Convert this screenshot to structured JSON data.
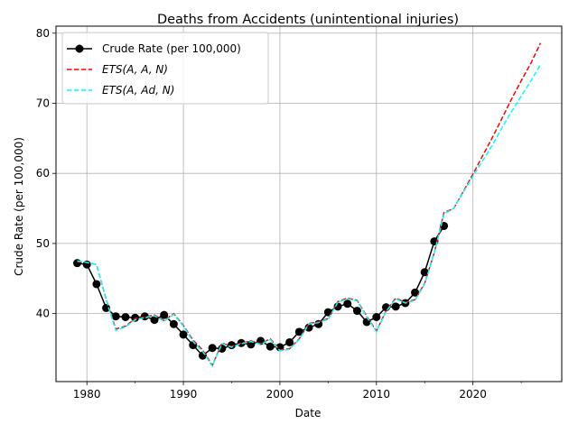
{
  "chart_data": {
    "type": "line",
    "title": "Deaths from Accidents (unintentional injuries)",
    "xlabel": "Date",
    "ylabel": "Crude Rate (per 100,000)",
    "xlim": [
      1976.8,
      2029.2
    ],
    "ylim": [
      30.3,
      81.0
    ],
    "x_ticks": [
      1980,
      1990,
      2000,
      2010,
      2020
    ],
    "x_minor_ticks": [
      1985,
      1995,
      2005,
      2015,
      2025
    ],
    "y_ticks": [
      40,
      50,
      60,
      70,
      80
    ],
    "grid": true,
    "legend_position": "top-left",
    "colors": {
      "observed": "#000000",
      "ets_aan": "#ff0000",
      "ets_aadn": "#00ffff",
      "grid": "#b0b0b0"
    },
    "series": [
      {
        "name": "Crude Rate (per 100,000)",
        "legend_label": "Crude Rate (per 100,000)",
        "style": "solid-marker",
        "x": [
          1979,
          1980,
          1981,
          1982,
          1983,
          1984,
          1985,
          1986,
          1987,
          1988,
          1989,
          1990,
          1991,
          1992,
          1993,
          1994,
          1995,
          1996,
          1997,
          1998,
          1999,
          2000,
          2001,
          2002,
          2003,
          2004,
          2005,
          2006,
          2007,
          2008,
          2009,
          2010,
          2011,
          2012,
          2013,
          2014,
          2015,
          2016,
          2017
        ],
        "values": [
          47.2,
          47.0,
          44.2,
          40.8,
          39.6,
          39.5,
          39.4,
          39.6,
          39.1,
          39.8,
          38.5,
          37.0,
          35.5,
          34.0,
          35.1,
          35.0,
          35.5,
          35.8,
          35.6,
          36.1,
          35.3,
          35.2,
          35.9,
          37.4,
          38.0,
          38.5,
          40.2,
          41.0,
          41.4,
          40.4,
          38.8,
          39.5,
          40.9,
          41.0,
          41.5,
          43.0,
          45.9,
          50.3,
          52.5
        ]
      },
      {
        "name": "ETS(A,A,N)",
        "legend_label": "ETS(A, A, N)",
        "style": "dashed",
        "x": [
          1979,
          1980,
          1981,
          1982,
          1983,
          1984,
          1985,
          1986,
          1987,
          1988,
          1989,
          1990,
          1991,
          1992,
          1993,
          1994,
          1995,
          1996,
          1997,
          1998,
          1999,
          2000,
          2001,
          2002,
          2003,
          2004,
          2005,
          2006,
          2007,
          2008,
          2009,
          2010,
          2011,
          2012,
          2013,
          2014,
          2015,
          2016,
          2017,
          2018,
          2019,
          2020,
          2021,
          2022,
          2023,
          2024,
          2025,
          2026,
          2027
        ],
        "values": [
          47.4,
          47.3,
          47.0,
          42.0,
          37.8,
          38.2,
          39.3,
          39.5,
          39.8,
          39.0,
          40.0,
          38.3,
          36.2,
          34.8,
          32.6,
          35.8,
          35.3,
          35.8,
          36.1,
          35.7,
          36.4,
          34.8,
          35.0,
          36.4,
          38.6,
          38.8,
          39.3,
          41.7,
          42.2,
          41.9,
          39.6,
          37.5,
          40.4,
          42.2,
          41.6,
          42.0,
          44.3,
          48.7,
          54.4,
          55.0,
          57.4,
          59.9,
          62.5,
          65.1,
          67.8,
          70.6,
          73.2,
          75.7,
          78.6
        ]
      },
      {
        "name": "ETS(A,Ad,N)",
        "legend_label": "ETS(A, Ad, N)",
        "style": "dashed",
        "x": [
          1979,
          1980,
          1981,
          1982,
          1983,
          1984,
          1985,
          1986,
          1987,
          1988,
          1989,
          1990,
          1991,
          1992,
          1993,
          1994,
          1995,
          1996,
          1997,
          1998,
          1999,
          2000,
          2001,
          2002,
          2003,
          2004,
          2005,
          2006,
          2007,
          2008,
          2009,
          2010,
          2011,
          2012,
          2013,
          2014,
          2015,
          2016,
          2017,
          2018,
          2019,
          2020,
          2021,
          2022,
          2023,
          2024,
          2025,
          2026,
          2027
        ],
        "values": [
          47.5,
          47.3,
          47.0,
          41.9,
          37.6,
          38.1,
          39.1,
          39.4,
          39.7,
          38.9,
          39.9,
          38.2,
          36.0,
          34.6,
          32.5,
          35.7,
          35.2,
          35.7,
          36.0,
          35.6,
          36.3,
          34.7,
          34.9,
          36.3,
          38.5,
          38.7,
          39.2,
          41.6,
          42.1,
          41.8,
          39.5,
          37.4,
          40.3,
          42.1,
          41.5,
          41.9,
          44.2,
          48.6,
          54.2,
          55.0,
          57.3,
          59.6,
          61.8,
          64.0,
          66.5,
          68.8,
          71.0,
          73.2,
          75.5
        ]
      }
    ]
  }
}
